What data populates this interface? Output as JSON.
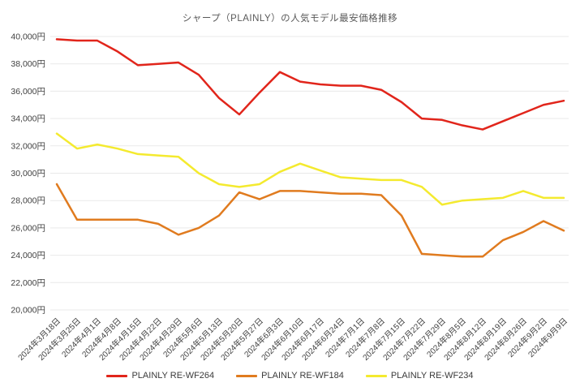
{
  "colors": {
    "background": "#ffffff",
    "grid": "#e9e9e9",
    "title": "#595959",
    "tick_label": "#3f3f3f",
    "legend_label": "#3a3a3a"
  },
  "chart_data": {
    "type": "line",
    "title": "シャープ（PLAINLY）の人気モデル最安価格推移",
    "xlabel": "",
    "ylabel": "",
    "ylim": [
      20000,
      40000
    ],
    "y_step": 2000,
    "grid": true,
    "legend_position": "bottom",
    "y_ticks": [
      "40,000円",
      "38,000円",
      "36,000円",
      "34,000円",
      "32,000円",
      "30,000円",
      "28,000円",
      "26,000円",
      "24,000円",
      "22,000円",
      "20,000円"
    ],
    "categories": [
      "2024年3月18日",
      "2024年3月25日",
      "2024年4月1日",
      "2024年4月8日",
      "2024年4月15日",
      "2024年4月22日",
      "2024年4月29日",
      "2024年5月6日",
      "2024年5月13日",
      "2024年5月20日",
      "2024年5月27日",
      "2024年6月3日",
      "2024年6月10日",
      "2024年6月17日",
      "2024年6月24日",
      "2024年7月1日",
      "2024年7月8日",
      "2024年7月15日",
      "2024年7月22日",
      "2024年7月29日",
      "2024年8月5日",
      "2024年8月12日",
      "2024年8月19日",
      "2024年8月26日",
      "2024年9月2日",
      "2024年9月9日"
    ],
    "series": [
      {
        "name": "PLAINLY RE-WF264",
        "color": "#e1251b",
        "values": [
          39800,
          39700,
          39700,
          38900,
          37900,
          38000,
          38100,
          37200,
          35500,
          34300,
          35900,
          37400,
          36700,
          36500,
          36400,
          36400,
          36100,
          35200,
          34000,
          33900,
          33500,
          33200,
          33800,
          34400,
          35000,
          35300
        ]
      },
      {
        "name": "PLAINLY RE-WF184",
        "color": "#e07b1f",
        "values": [
          29200,
          26600,
          26600,
          26600,
          26600,
          26300,
          25500,
          26000,
          26900,
          28600,
          28100,
          28700,
          28700,
          28600,
          28500,
          28500,
          28400,
          26900,
          24100,
          24000,
          23900,
          23900,
          25100,
          25700,
          26500,
          25800
        ]
      },
      {
        "name": "PLAINLY RE-WF234",
        "color": "#f4ea2f",
        "values": [
          32900,
          31800,
          32100,
          31800,
          31400,
          31300,
          31200,
          30000,
          29200,
          29000,
          29200,
          30100,
          30700,
          30200,
          29700,
          29600,
          29500,
          29500,
          29000,
          27700,
          28000,
          28100,
          28200,
          28700,
          28200,
          28200
        ]
      }
    ]
  }
}
